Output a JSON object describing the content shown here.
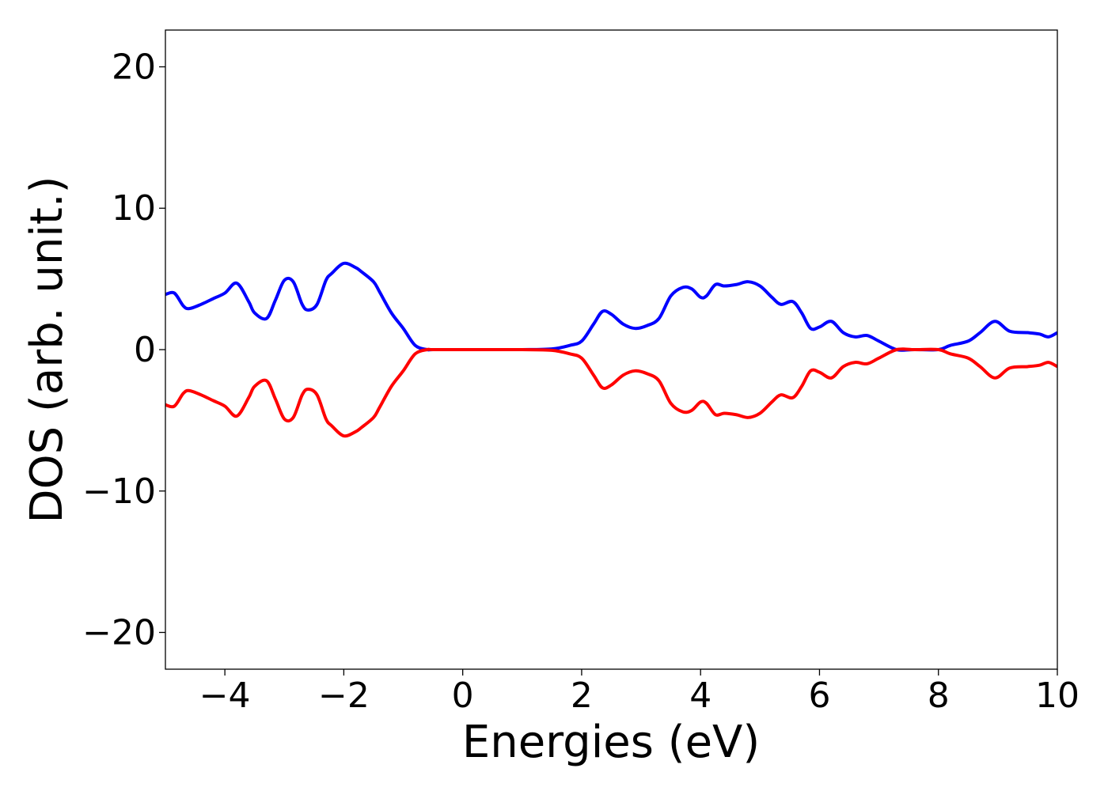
{
  "chart_data": {
    "type": "line",
    "title": "",
    "xlabel": "Energies (eV)",
    "ylabel": "DOS (arb. unit.)",
    "xlim": [
      -5,
      10
    ],
    "ylim": [
      -22.6,
      22.6
    ],
    "xticks": [
      -4,
      -2,
      0,
      2,
      4,
      6,
      8,
      10
    ],
    "yticks": [
      -20,
      -10,
      0,
      10,
      20
    ],
    "xtick_labels": [
      "−4",
      "−2",
      "0",
      "2",
      "4",
      "6",
      "8",
      "10"
    ],
    "ytick_labels": [
      "−20",
      "−10",
      "0",
      "10",
      "20"
    ],
    "grid": false,
    "legend": "none",
    "series": [
      {
        "color": "#0000ff",
        "x": [
          -5.0,
          -4.85,
          -4.7,
          -4.6,
          -4.4,
          -4.2,
          -4.0,
          -3.8,
          -3.6,
          -3.5,
          -3.3,
          -3.15,
          -3.0,
          -2.85,
          -2.7,
          -2.6,
          -2.45,
          -2.3,
          -2.2,
          -2.0,
          -1.8,
          -1.7,
          -1.5,
          -1.4,
          -1.2,
          -1.0,
          -0.8,
          -0.6,
          -0.5,
          0.0,
          0.5,
          1.0,
          1.5,
          1.8,
          2.0,
          2.2,
          2.35,
          2.5,
          2.7,
          2.9,
          3.1,
          3.3,
          3.5,
          3.7,
          3.85,
          4.0,
          4.1,
          4.25,
          4.4,
          4.6,
          4.8,
          5.0,
          5.2,
          5.35,
          5.55,
          5.7,
          5.85,
          6.0,
          6.2,
          6.4,
          6.6,
          6.8,
          7.0,
          7.3,
          7.6,
          8.0,
          8.2,
          8.5,
          8.7,
          8.95,
          9.2,
          9.5,
          9.7,
          9.85,
          10.0
        ],
        "values": [
          3.9,
          4.0,
          3.1,
          2.9,
          3.2,
          3.6,
          4.0,
          4.7,
          3.4,
          2.6,
          2.2,
          3.5,
          4.9,
          4.8,
          3.2,
          2.8,
          3.2,
          4.9,
          5.4,
          6.1,
          5.8,
          5.5,
          4.8,
          4.1,
          2.6,
          1.5,
          0.3,
          0.0,
          0.0,
          0.0,
          0.0,
          0.0,
          0.05,
          0.3,
          0.6,
          1.8,
          2.7,
          2.5,
          1.8,
          1.5,
          1.7,
          2.2,
          3.8,
          4.4,
          4.3,
          3.7,
          3.8,
          4.6,
          4.5,
          4.6,
          4.8,
          4.5,
          3.7,
          3.2,
          3.4,
          2.6,
          1.5,
          1.6,
          2.0,
          1.2,
          0.9,
          1.0,
          0.6,
          0.0,
          0.0,
          0.0,
          0.3,
          0.6,
          1.2,
          2.0,
          1.3,
          1.2,
          1.1,
          0.9,
          1.2
        ]
      },
      {
        "color": "#ff0000",
        "x": [
          -5.0,
          -4.85,
          -4.7,
          -4.6,
          -4.4,
          -4.2,
          -4.0,
          -3.8,
          -3.6,
          -3.5,
          -3.3,
          -3.15,
          -3.0,
          -2.85,
          -2.7,
          -2.6,
          -2.45,
          -2.3,
          -2.2,
          -2.0,
          -1.8,
          -1.7,
          -1.5,
          -1.4,
          -1.2,
          -1.0,
          -0.8,
          -0.6,
          -0.5,
          0.0,
          0.5,
          1.0,
          1.5,
          1.8,
          2.0,
          2.2,
          2.35,
          2.5,
          2.7,
          2.9,
          3.1,
          3.3,
          3.5,
          3.7,
          3.85,
          4.0,
          4.1,
          4.25,
          4.4,
          4.6,
          4.8,
          5.0,
          5.2,
          5.35,
          5.55,
          5.7,
          5.85,
          6.0,
          6.2,
          6.4,
          6.6,
          6.8,
          7.0,
          7.3,
          7.6,
          8.0,
          8.2,
          8.5,
          8.7,
          8.95,
          9.2,
          9.5,
          9.7,
          9.85,
          10.0
        ],
        "values": [
          -3.9,
          -4.0,
          -3.1,
          -2.9,
          -3.2,
          -3.6,
          -4.0,
          -4.7,
          -3.4,
          -2.6,
          -2.2,
          -3.5,
          -4.9,
          -4.8,
          -3.2,
          -2.8,
          -3.2,
          -4.9,
          -5.4,
          -6.1,
          -5.8,
          -5.5,
          -4.8,
          -4.1,
          -2.6,
          -1.5,
          -0.3,
          0.0,
          0.0,
          0.0,
          0.0,
          0.0,
          -0.05,
          -0.3,
          -0.6,
          -1.8,
          -2.7,
          -2.5,
          -1.8,
          -1.5,
          -1.7,
          -2.2,
          -3.8,
          -4.4,
          -4.3,
          -3.7,
          -3.8,
          -4.6,
          -4.5,
          -4.6,
          -4.8,
          -4.5,
          -3.7,
          -3.2,
          -3.4,
          -2.6,
          -1.5,
          -1.6,
          -2.0,
          -1.2,
          -0.9,
          -1.0,
          -0.6,
          0.0,
          0.0,
          0.0,
          -0.3,
          -0.6,
          -1.2,
          -2.0,
          -1.3,
          -1.2,
          -1.1,
          -0.9,
          -1.2
        ]
      }
    ]
  }
}
